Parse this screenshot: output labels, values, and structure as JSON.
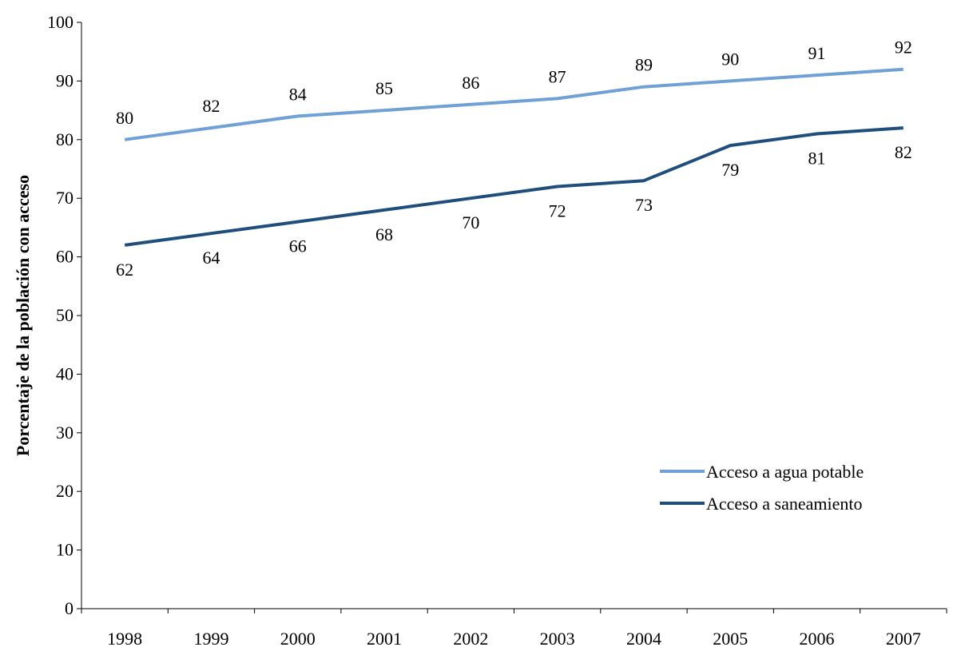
{
  "chart_data": {
    "type": "line",
    "title": "",
    "xlabel": "",
    "ylabel": "Porcentaje de la población con acceso",
    "categories": [
      "1998",
      "1999",
      "2000",
      "2001",
      "2002",
      "2003",
      "2004",
      "2005",
      "2006",
      "2007"
    ],
    "ylim": [
      0,
      100
    ],
    "yticks": [
      0,
      10,
      20,
      30,
      40,
      50,
      60,
      70,
      80,
      90,
      100
    ],
    "grid": false,
    "legend_position": "bottom-right",
    "series": [
      {
        "name": "Acceso a agua potable",
        "color": "#6fa0d6",
        "values": [
          80,
          82,
          84,
          85,
          86,
          87,
          89,
          90,
          91,
          92
        ],
        "label_position": "above"
      },
      {
        "name": "Acceso a saneamiento",
        "color": "#1f4e7d",
        "values": [
          62,
          64,
          66,
          68,
          70,
          72,
          73,
          79,
          81,
          82
        ],
        "label_position": "below"
      }
    ]
  }
}
